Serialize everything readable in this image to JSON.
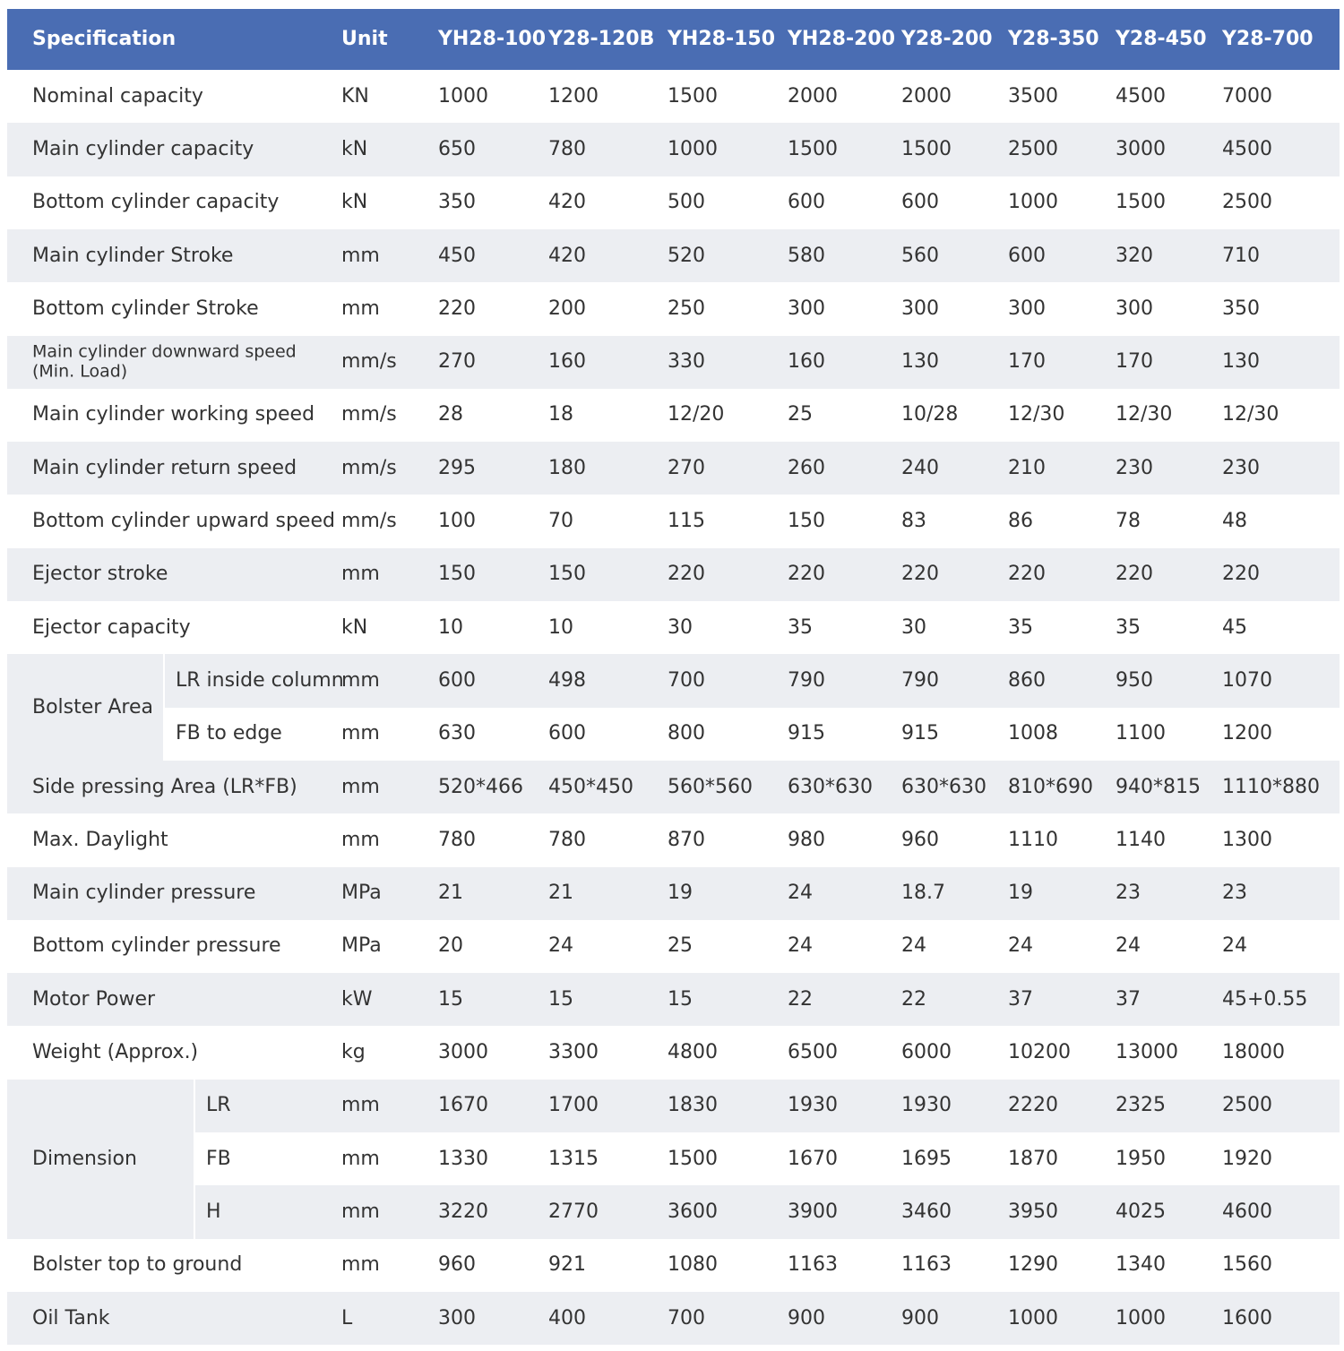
{
  "table": {
    "header": [
      "Specification",
      "Unit",
      "YH28-100",
      "Y28-120B",
      "YH28-150",
      "YH28-200",
      "Y28-200",
      "Y28-350",
      "Y28-450",
      "Y28-700"
    ],
    "rows": [
      {
        "label": "Nominal capacity",
        "unit": "KN",
        "values": [
          "1000",
          "1200",
          "1500",
          "2000",
          "2000",
          "3500",
          "4500",
          "7000"
        ]
      },
      {
        "label": "Main cylinder capacity",
        "unit": "kN",
        "values": [
          "650",
          "780",
          "1000",
          "1500",
          "1500",
          "2500",
          "3000",
          "4500"
        ]
      },
      {
        "label": "Bottom cylinder capacity",
        "unit": "kN",
        "values": [
          "350",
          "420",
          "500",
          "600",
          "600",
          "1000",
          "1500",
          "2500"
        ]
      },
      {
        "label": "Main cylinder Stroke",
        "unit": "mm",
        "values": [
          "450",
          "420",
          "520",
          "580",
          "560",
          "600",
          "320",
          "710"
        ]
      },
      {
        "label": "Bottom cylinder Stroke",
        "unit": "mm",
        "values": [
          "220",
          "200",
          "250",
          "300",
          "300",
          "300",
          "300",
          "350"
        ]
      },
      {
        "label": "Main cylinder downward speed",
        "label2": "(Min. Load)",
        "unit": "mm/s",
        "values": [
          "270",
          "160",
          "330",
          "160",
          "130",
          "170",
          "170",
          "130"
        ]
      },
      {
        "label": "Main cylinder working speed",
        "unit": "mm/s",
        "values": [
          "28",
          "18",
          "12/20",
          "25",
          "10/28",
          "12/30",
          "12/30",
          "12/30"
        ]
      },
      {
        "label": "Main cylinder return speed",
        "unit": "mm/s",
        "values": [
          "295",
          "180",
          "270",
          "260",
          "240",
          "210",
          "230",
          "230"
        ]
      },
      {
        "label": "Bottom cylinder upward speed",
        "unit": "mm/s",
        "values": [
          "100",
          "70",
          "115",
          "150",
          "83",
          "86",
          "78",
          "48"
        ]
      },
      {
        "label": "Ejector stroke",
        "unit": "mm",
        "values": [
          "150",
          "150",
          "220",
          "220",
          "220",
          "220",
          "220",
          "220"
        ]
      },
      {
        "label": "Ejector capacity",
        "unit": "kN",
        "values": [
          "10",
          "10",
          "30",
          "35",
          "30",
          "35",
          "35",
          "45"
        ]
      },
      {
        "group": "Bolster Area",
        "sub": [
          {
            "label": "LR inside column",
            "unit": "mm",
            "values": [
              "600",
              "498",
              "700",
              "790",
              "790",
              "860",
              "950",
              "1070"
            ]
          },
          {
            "label": "FB to edge",
            "unit": "mm",
            "values": [
              "630",
              "600",
              "800",
              "915",
              "915",
              "1008",
              "1100",
              "1200"
            ]
          }
        ]
      },
      {
        "label": "Side pressing Area (LR*FB)",
        "unit": "mm",
        "values": [
          "520*466",
          "450*450",
          "560*560",
          "630*630",
          "630*630",
          "810*690",
          "940*815",
          "1110*880"
        ]
      },
      {
        "label": "Max. Daylight",
        "unit": "mm",
        "values": [
          "780",
          "780",
          "870",
          "980",
          "960",
          "1110",
          "1140",
          "1300"
        ]
      },
      {
        "label": "Main cylinder pressure",
        "unit": "MPa",
        "values": [
          "21",
          "21",
          "19",
          "24",
          "18.7",
          "19",
          "23",
          "23"
        ]
      },
      {
        "label": "Bottom cylinder pressure",
        "unit": "MPa",
        "values": [
          "20",
          "24",
          "25",
          "24",
          "24",
          "24",
          "24",
          "24"
        ]
      },
      {
        "label": "Motor Power",
        "unit": "kW",
        "values": [
          "15",
          "15",
          "15",
          "22",
          "22",
          "37",
          "37",
          "45+0.55"
        ]
      },
      {
        "label": "Weight (Approx.)",
        "unit": "kg",
        "values": [
          "3000",
          "3300",
          "4800",
          "6500",
          "6000",
          "10200",
          "13000",
          "18000"
        ]
      },
      {
        "group": "Dimension",
        "sub": [
          {
            "label": "LR",
            "unit": "mm",
            "values": [
              "1670",
              "1700",
              "1830",
              "1930",
              "1930",
              "2220",
              "2325",
              "2500"
            ]
          },
          {
            "label": "FB",
            "unit": "mm",
            "values": [
              "1330",
              "1315",
              "1500",
              "1670",
              "1695",
              "1870",
              "1950",
              "1920"
            ]
          },
          {
            "label": "H",
            "unit": "mm",
            "values": [
              "3220",
              "2770",
              "3600",
              "3900",
              "3460",
              "3950",
              "4025",
              "4600"
            ]
          }
        ]
      },
      {
        "label": "Bolster top to ground",
        "unit": "mm",
        "values": [
          "960",
          "921",
          "1080",
          "1163",
          "1163",
          "1290",
          "1340",
          "1560"
        ]
      },
      {
        "label": "Oil Tank",
        "unit": "L",
        "values": [
          "300",
          "400",
          "700",
          "900",
          "900",
          "1000",
          "1000",
          "1600"
        ]
      }
    ]
  }
}
